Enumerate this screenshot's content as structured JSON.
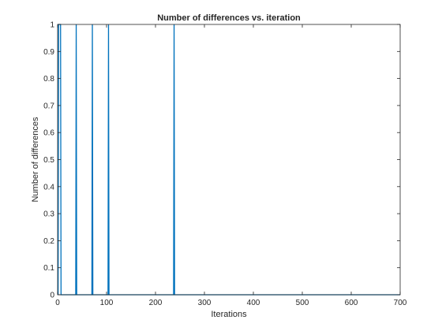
{
  "chart_data": {
    "type": "line",
    "title": "Number of differences vs. iteration",
    "xlabel": "Iterations",
    "ylabel": "Number of differences",
    "xlim": [
      0,
      700
    ],
    "ylim": [
      0,
      1
    ],
    "xticks": [
      0,
      100,
      200,
      300,
      400,
      500,
      600,
      700
    ],
    "yticks": [
      0,
      0.1,
      0.2,
      0.3,
      0.4,
      0.5,
      0.6,
      0.7,
      0.8,
      0.9,
      1
    ],
    "xtick_labels": [
      "0",
      "100",
      "200",
      "300",
      "400",
      "500",
      "600",
      "700"
    ],
    "ytick_labels": [
      "0",
      "0.1",
      "0.2",
      "0.3",
      "0.4",
      "0.5",
      "0.6",
      "0.7",
      "0.8",
      "0.9",
      "1"
    ],
    "grid": false,
    "line_color": "#0072bd",
    "series": [
      {
        "x": [
          1,
          2,
          3,
          4,
          5,
          6,
          7,
          37,
          38,
          39,
          70,
          71,
          72,
          103,
          104,
          105,
          237,
          238,
          239,
          700
        ],
        "y": [
          0,
          1,
          1,
          1,
          1,
          1,
          0,
          0,
          1,
          0,
          0,
          1,
          0,
          0,
          1,
          0,
          0,
          1,
          0,
          0
        ]
      }
    ]
  }
}
